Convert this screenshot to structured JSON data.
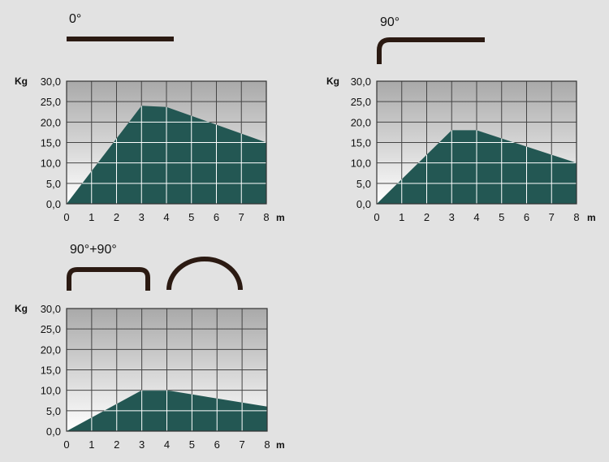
{
  "colors": {
    "background": "#e2e2e2",
    "area_fill": "#235753",
    "grid_line": "#ffffff",
    "grid_border": "#333333",
    "symbol": "#2b1a12",
    "plot_gradient_top": "#a9a9a9",
    "plot_gradient_bottom": "#ffffff"
  },
  "chart_data": [
    {
      "type": "area",
      "title": "0°",
      "symbol": "straight-bar",
      "ylabel": "Kg",
      "xlabel": "m",
      "xlim": [
        0,
        8
      ],
      "ylim": [
        0,
        30
      ],
      "x_ticks": [
        "0",
        "1",
        "2",
        "3",
        "4",
        "5",
        "6",
        "7",
        "8"
      ],
      "y_ticks": [
        "0,0",
        "5,0",
        "10,0",
        "15,0",
        "20,0",
        "25,0",
        "30,0"
      ],
      "grid": true,
      "x": [
        0,
        3,
        4,
        8
      ],
      "y": [
        0,
        24,
        23.7,
        15
      ]
    },
    {
      "type": "area",
      "title": "90°",
      "symbol": "single-bend",
      "ylabel": "Kg",
      "xlabel": "m",
      "xlim": [
        0,
        8
      ],
      "ylim": [
        0,
        30
      ],
      "x_ticks": [
        "0",
        "1",
        "2",
        "3",
        "4",
        "5",
        "6",
        "7",
        "8"
      ],
      "y_ticks": [
        "0,0",
        "5,0",
        "10,0",
        "15,0",
        "20,0",
        "25,0",
        "30,0"
      ],
      "grid": true,
      "x": [
        0,
        3,
        4,
        8
      ],
      "y": [
        0,
        18,
        18,
        10
      ]
    },
    {
      "type": "area",
      "title": "90°+90°",
      "symbol": "double-bend-and-arc",
      "ylabel": "Kg",
      "xlabel": "m",
      "xlim": [
        0,
        8
      ],
      "ylim": [
        0,
        30
      ],
      "x_ticks": [
        "0",
        "1",
        "2",
        "3",
        "4",
        "5",
        "6",
        "7",
        "8"
      ],
      "y_ticks": [
        "0,0",
        "5,0",
        "10,0",
        "15,0",
        "20,0",
        "25,0",
        "30,0"
      ],
      "grid": true,
      "x": [
        0,
        3,
        4,
        8
      ],
      "y": [
        0,
        10,
        10,
        6
      ]
    }
  ]
}
